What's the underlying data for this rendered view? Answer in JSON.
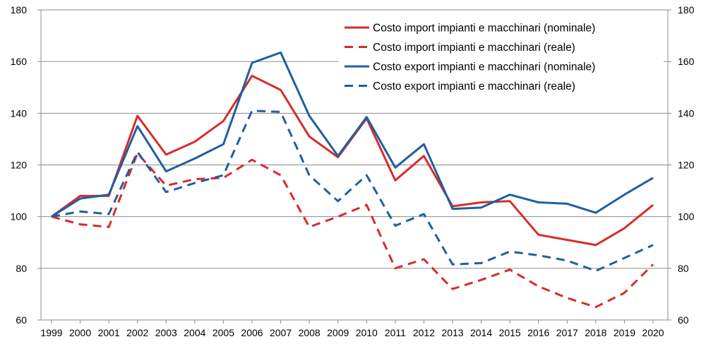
{
  "chart_data": {
    "type": "line",
    "title": "",
    "xlabel": "",
    "ylabel": "",
    "x": [
      "1999",
      "2000",
      "2001",
      "2002",
      "2003",
      "2004",
      "2005",
      "2006",
      "2007",
      "2008",
      "2009",
      "2010",
      "2011",
      "2012",
      "2013",
      "2014",
      "2015",
      "2016",
      "2017",
      "2018",
      "2019",
      "2020"
    ],
    "ylim": [
      60,
      180
    ],
    "y_ticks": [
      "60",
      "80",
      "100",
      "120",
      "140",
      "160",
      "180"
    ],
    "secondary_y_ticks": [
      "60",
      "80",
      "100",
      "120",
      "140",
      "160",
      "180"
    ],
    "grid": "horizontal",
    "legend_position": "top-right",
    "series": [
      {
        "name": "Costo import impianti e macchinari (nominale)",
        "color": "#d92b2b",
        "dash": "solid",
        "values": [
          100,
          108,
          108,
          139,
          124,
          129,
          137,
          154.5,
          149,
          131,
          123,
          138,
          114,
          123.5,
          104,
          105.5,
          106,
          93,
          91,
          89,
          95.5,
          104.5
        ]
      },
      {
        "name": "Costo import impianti e macchinari (reale)",
        "color": "#d92b2b",
        "dash": "dashed",
        "values": [
          100,
          97,
          96,
          124.5,
          112,
          114.5,
          115,
          122,
          116,
          96,
          100,
          104.5,
          80,
          83.5,
          72,
          75.5,
          79.5,
          73,
          68.5,
          65,
          70.5,
          81.5
        ]
      },
      {
        "name": "Costo export impianti e macchinari (nominale)",
        "color": "#1f5fa0",
        "dash": "solid",
        "values": [
          100,
          107,
          108.5,
          135,
          117.5,
          122.5,
          128,
          159.5,
          163.5,
          139,
          123.5,
          138.5,
          119,
          128,
          103,
          103.5,
          108.5,
          105.5,
          105,
          101.5,
          108.5,
          115
        ]
      },
      {
        "name": "Costo export impianti e macchinari (reale)",
        "color": "#1f5fa0",
        "dash": "dashed",
        "values": [
          100,
          102,
          101,
          125,
          109.5,
          113,
          116,
          141,
          140.5,
          116,
          106,
          116,
          96.5,
          101,
          81.5,
          82,
          86.5,
          85,
          83,
          79,
          84,
          89
        ]
      }
    ]
  }
}
